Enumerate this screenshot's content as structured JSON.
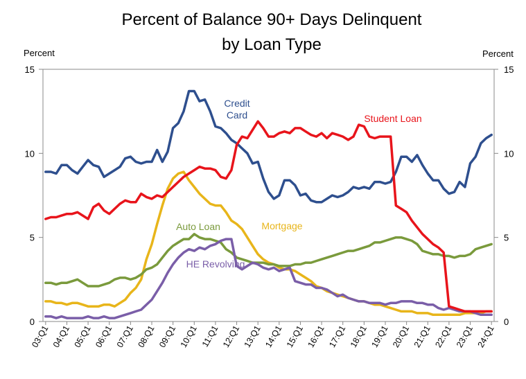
{
  "chart_data": {
    "type": "line",
    "title_line1": "Percent of Balance 90+ Days Delinquent",
    "title_line2": "by Loan Type",
    "left_axis_label": "Percent",
    "right_axis_label": "Percent",
    "ylim": [
      0,
      15
    ],
    "yticks": [
      "0",
      "5",
      "10",
      "15"
    ],
    "xticks": [
      "03:Q1",
      "04:Q1",
      "05:Q1",
      "06:Q1",
      "07:Q1",
      "08:Q1",
      "09:Q1",
      "10:Q1",
      "11:Q1",
      "12:Q1",
      "13:Q1",
      "14:Q1",
      "15:Q1",
      "16:Q1",
      "17:Q1",
      "18:Q1",
      "19:Q1",
      "20:Q1",
      "21:Q1",
      "22:Q1",
      "23:Q1",
      "24:Q1"
    ],
    "grid": false,
    "legend": "inline labels",
    "series": [
      {
        "name": "Credit Card",
        "label_lines": [
          "Credit",
          "Card"
        ],
        "color": "#2E4F8E",
        "values": [
          8.9,
          8.9,
          8.8,
          9.3,
          9.3,
          9.0,
          8.8,
          9.2,
          9.6,
          9.3,
          9.2,
          8.6,
          8.8,
          9.0,
          9.2,
          9.7,
          9.8,
          9.5,
          9.4,
          9.5,
          9.5,
          10.2,
          9.5,
          10.1,
          11.5,
          11.8,
          12.5,
          13.7,
          13.7,
          13.1,
          13.2,
          12.5,
          11.6,
          11.5,
          11.2,
          10.8,
          10.6,
          10.3,
          10.0,
          9.4,
          9.5,
          8.5,
          7.7,
          7.3,
          7.5,
          8.4,
          8.4,
          8.1,
          7.5,
          7.6,
          7.2,
          7.1,
          7.1,
          7.3,
          7.5,
          7.4,
          7.5,
          7.7,
          8.0,
          7.9,
          8.0,
          7.9,
          8.3,
          8.3,
          8.2,
          8.3,
          8.9,
          9.8,
          9.8,
          9.5,
          9.9,
          9.3,
          8.8,
          8.4,
          8.4,
          7.9,
          7.6,
          7.7,
          8.3,
          8.0,
          9.4,
          9.8,
          10.6,
          10.9,
          11.1
        ]
      },
      {
        "name": "Student Loan",
        "label_lines": [
          "Student Loan"
        ],
        "color": "#E8141B",
        "values": [
          6.1,
          6.2,
          6.2,
          6.3,
          6.4,
          6.4,
          6.5,
          6.3,
          6.1,
          6.8,
          7.0,
          6.6,
          6.4,
          6.7,
          7.0,
          7.2,
          7.1,
          7.1,
          7.6,
          7.4,
          7.3,
          7.5,
          7.4,
          7.7,
          8.0,
          8.3,
          8.6,
          8.8,
          9.0,
          9.2,
          9.1,
          9.1,
          9.0,
          8.6,
          8.5,
          9.0,
          10.5,
          11.0,
          10.9,
          11.4,
          11.9,
          11.5,
          11.0,
          11.0,
          11.2,
          11.3,
          11.2,
          11.5,
          11.5,
          11.3,
          11.1,
          11.0,
          11.2,
          10.9,
          11.2,
          11.1,
          11.0,
          10.8,
          11.0,
          11.7,
          11.6,
          11.0,
          10.9,
          11.0,
          11.0,
          11.0,
          6.9,
          6.7,
          6.5,
          6.0,
          5.6,
          5.2,
          4.9,
          4.6,
          4.4,
          4.1,
          0.9,
          0.8,
          0.7,
          0.6,
          0.6,
          0.6,
          0.6,
          0.6,
          0.6
        ]
      },
      {
        "name": "Auto Loan",
        "label_lines": [
          "Auto Loan"
        ],
        "color": "#7A9A3C",
        "values": [
          2.3,
          2.3,
          2.2,
          2.3,
          2.3,
          2.4,
          2.5,
          2.3,
          2.1,
          2.1,
          2.1,
          2.2,
          2.3,
          2.5,
          2.6,
          2.6,
          2.5,
          2.6,
          2.8,
          3.1,
          3.2,
          3.4,
          3.8,
          4.2,
          4.5,
          4.7,
          4.9,
          4.9,
          5.2,
          5.0,
          4.9,
          4.9,
          4.8,
          4.7,
          4.3,
          4.1,
          3.8,
          3.7,
          3.6,
          3.5,
          3.5,
          3.5,
          3.4,
          3.4,
          3.3,
          3.3,
          3.3,
          3.4,
          3.4,
          3.5,
          3.5,
          3.6,
          3.7,
          3.8,
          3.9,
          4.0,
          4.1,
          4.2,
          4.2,
          4.3,
          4.4,
          4.5,
          4.7,
          4.7,
          4.8,
          4.9,
          5.0,
          5.0,
          4.9,
          4.8,
          4.6,
          4.2,
          4.1,
          4.0,
          4.0,
          3.9,
          3.9,
          3.8,
          3.9,
          3.9,
          4.0,
          4.3,
          4.4,
          4.5,
          4.6
        ]
      },
      {
        "name": "Mortgage",
        "label_lines": [
          "Mortgage"
        ],
        "color": "#E8B51A",
        "values": [
          1.2,
          1.2,
          1.1,
          1.1,
          1.0,
          1.1,
          1.1,
          1.0,
          0.9,
          0.9,
          0.9,
          1.0,
          1.0,
          0.9,
          1.1,
          1.3,
          1.7,
          2.0,
          2.5,
          3.7,
          4.6,
          5.8,
          6.9,
          7.9,
          8.5,
          8.8,
          8.9,
          8.4,
          8.0,
          7.6,
          7.3,
          7.0,
          6.9,
          6.9,
          6.5,
          6.0,
          5.8,
          5.5,
          5.0,
          4.5,
          4.0,
          3.7,
          3.5,
          3.4,
          3.2,
          3.1,
          3.1,
          3.0,
          2.8,
          2.6,
          2.4,
          2.1,
          2.0,
          1.8,
          1.7,
          1.6,
          1.5,
          1.4,
          1.3,
          1.2,
          1.2,
          1.1,
          1.0,
          1.0,
          0.9,
          0.8,
          0.7,
          0.6,
          0.6,
          0.6,
          0.5,
          0.5,
          0.5,
          0.4,
          0.4,
          0.4,
          0.4,
          0.4,
          0.4,
          0.5,
          0.5,
          0.5,
          0.5,
          0.6,
          0.6
        ]
      },
      {
        "name": "HE Revolving",
        "label_lines": [
          "HE Revolving"
        ],
        "color": "#7A5EA8",
        "values": [
          0.3,
          0.3,
          0.2,
          0.3,
          0.2,
          0.2,
          0.2,
          0.2,
          0.3,
          0.2,
          0.2,
          0.3,
          0.2,
          0.2,
          0.3,
          0.4,
          0.5,
          0.6,
          0.7,
          1.0,
          1.3,
          1.8,
          2.3,
          2.9,
          3.4,
          3.8,
          4.1,
          4.3,
          4.2,
          4.4,
          4.3,
          4.5,
          4.6,
          4.8,
          4.9,
          4.9,
          3.3,
          3.1,
          3.3,
          3.5,
          3.4,
          3.2,
          3.1,
          3.2,
          3.0,
          3.1,
          3.2,
          2.4,
          2.3,
          2.2,
          2.2,
          2.0,
          2.0,
          1.9,
          1.7,
          1.5,
          1.6,
          1.4,
          1.3,
          1.2,
          1.2,
          1.1,
          1.1,
          1.1,
          1.0,
          1.1,
          1.1,
          1.2,
          1.2,
          1.2,
          1.1,
          1.1,
          1.0,
          1.0,
          0.8,
          0.7,
          0.8,
          0.7,
          0.6,
          0.6,
          0.6,
          0.5,
          0.4,
          0.4,
          0.4
        ]
      }
    ]
  }
}
